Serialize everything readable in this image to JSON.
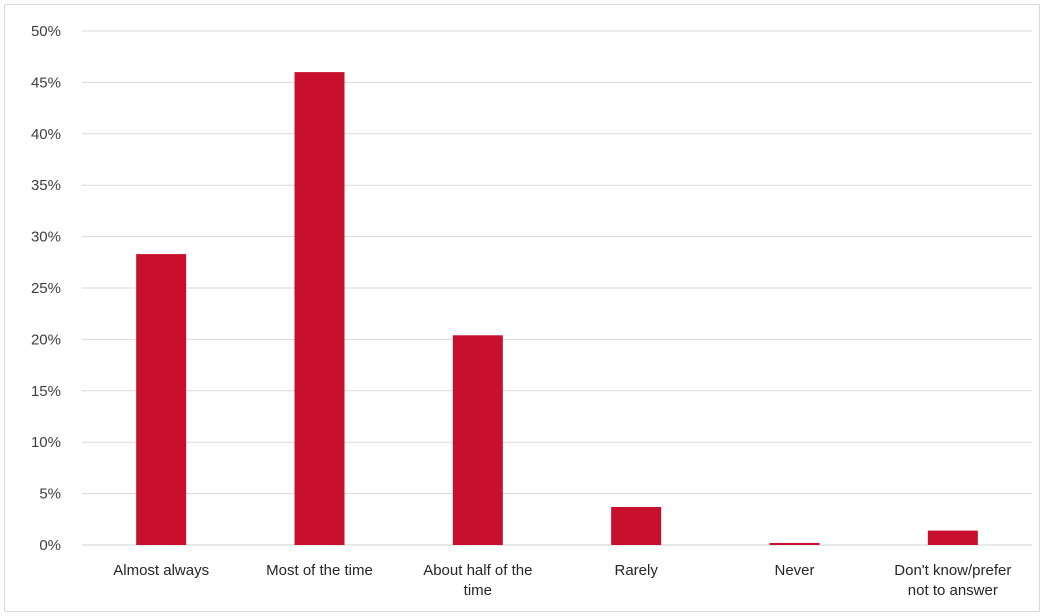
{
  "chart_data": {
    "type": "bar",
    "categories": [
      [
        "Almost always"
      ],
      [
        "Most of the time"
      ],
      [
        "About half of the",
        "time"
      ],
      [
        "Rarely"
      ],
      [
        "Never"
      ],
      [
        "Don't know/prefer",
        "not to answer"
      ]
    ],
    "values": [
      28.3,
      46.0,
      20.4,
      3.7,
      0.2,
      1.4
    ],
    "ylim": [
      0,
      50
    ],
    "yticks": [
      "0%",
      "5%",
      "10%",
      "15%",
      "20%",
      "25%",
      "30%",
      "35%",
      "40%",
      "45%",
      "50%"
    ],
    "grid": true,
    "bar_color": "#c8102e",
    "gridline_color": "#d9d9d9"
  }
}
